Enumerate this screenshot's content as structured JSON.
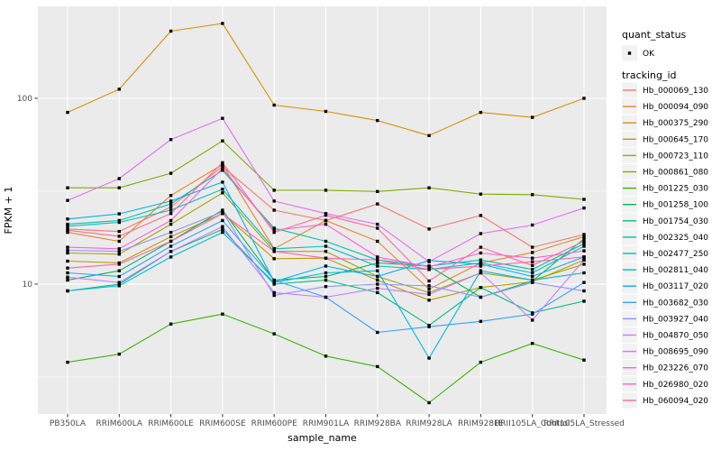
{
  "chart_data": {
    "type": "line",
    "title": "",
    "xlabel": "sample_name",
    "ylabel": "FPKM + 1",
    "y_scale": "log10",
    "y_ticks": [
      100,
      10
    ],
    "y_minor_ticks": [
      31.62,
      3.162
    ],
    "categories": [
      "PB350LA",
      "RRIM600LA",
      "RRIM600LE",
      "RRIM600SE",
      "RRIM600PE",
      "RRIM901LA",
      "RRIM928BA",
      "RRIM928LA",
      "RRIM928LE",
      "RRII105LA_Control",
      "RRII105LA_Stressed"
    ],
    "legend": {
      "quant_status_title": "quant_status",
      "quant_status_items": [
        {
          "label": "OK",
          "marker": "point",
          "color": "#000000"
        }
      ],
      "tracking_id_title": "tracking_id"
    },
    "colors": {
      "panel_bg": "#EBEBEB",
      "grid": "#FFFFFF",
      "tick_text": "#4D4D4D",
      "axis_text": "#000000",
      "point": "#000000",
      "legend_key_bg": "#F2F2F2"
    },
    "series": [
      {
        "name": "Hb_000069_130",
        "color": "#F8766D",
        "values": [
          19.8,
          19.2,
          26,
          43,
          25,
          22,
          27,
          19.8,
          23.4,
          15.8,
          18.5
        ]
      },
      {
        "name": "Hb_000094_090",
        "color": "#E88526",
        "values": [
          19.0,
          17.0,
          30,
          44,
          15.5,
          22,
          17,
          9.4,
          13.0,
          14.8,
          18.0
        ]
      },
      {
        "name": "Hb_000375_290",
        "color": "#D89000",
        "values": [
          84,
          112,
          230,
          253,
          92,
          85,
          76,
          63,
          84,
          79,
          100
        ]
      },
      {
        "name": "Hb_000645_170",
        "color": "#C09B00",
        "values": [
          13.3,
          13.0,
          18,
          24,
          13.7,
          13.8,
          10.5,
          8.2,
          9.6,
          10.3,
          13.5
        ]
      },
      {
        "name": "Hb_000723_110",
        "color": "#A3A500",
        "values": [
          14.7,
          14.5,
          21,
          31,
          15.0,
          15.0,
          11.0,
          9.0,
          11.5,
          10.5,
          12.8
        ]
      },
      {
        "name": "Hb_000861_080",
        "color": "#7CAE00",
        "values": [
          33,
          33,
          39.5,
          59,
          32,
          32,
          31.5,
          33,
          30.5,
          30.3,
          28.6
        ]
      },
      {
        "name": "Hb_001225_030",
        "color": "#39B600",
        "values": [
          3.8,
          4.2,
          6.1,
          6.9,
          5.4,
          4.1,
          3.6,
          2.3,
          3.8,
          4.8,
          3.9
        ]
      },
      {
        "name": "Hb_001258_100",
        "color": "#00BB4E",
        "values": [
          10.5,
          11.8,
          17,
          25,
          10.5,
          11.0,
          13.0,
          12.5,
          8.5,
          10.4,
          17.5
        ]
      },
      {
        "name": "Hb_001754_030",
        "color": "#00BF7D",
        "values": [
          9.2,
          10.0,
          15,
          19.7,
          10.0,
          10.5,
          9.0,
          6.0,
          9.6,
          7.0,
          8.1
        ]
      },
      {
        "name": "Hb_002325_040",
        "color": "#00C1A3",
        "values": [
          21,
          22,
          27,
          41,
          20,
          17,
          13.5,
          12.5,
          13.5,
          12.0,
          16.5
        ]
      },
      {
        "name": "Hb_002477_250",
        "color": "#00BFC4",
        "values": [
          20.5,
          21.5,
          25,
          32.4,
          15.5,
          16,
          12.5,
          12,
          13,
          11.5,
          16
        ]
      },
      {
        "name": "Hb_002811_040",
        "color": "#00BAE0",
        "values": [
          9.2,
          9.8,
          14,
          19,
          10.2,
          11.5,
          11.8,
          4.0,
          11.8,
          10.5,
          11.5
        ]
      },
      {
        "name": "Hb_003117_020",
        "color": "#00B0F6",
        "values": [
          22.4,
          23.9,
          28,
          35.4,
          10.3,
          12.5,
          11.0,
          13.4,
          12.8,
          11.0,
          14.0
        ]
      },
      {
        "name": "Hb_003682_030",
        "color": "#35A2FF",
        "values": [
          11.5,
          11.0,
          16,
          22,
          10.5,
          8.5,
          5.5,
          5.9,
          6.3,
          6.9,
          10.2
        ]
      },
      {
        "name": "Hb_003927_040",
        "color": "#9590FF",
        "values": [
          15.2,
          15.0,
          19,
          24.5,
          8.7,
          9.7,
          10.0,
          9.8,
          8.5,
          10.2,
          9.2
        ]
      },
      {
        "name": "Hb_004870_050",
        "color": "#C77CFF",
        "values": [
          10.9,
          10.2,
          15,
          20.4,
          9.0,
          8.5,
          9.5,
          8.8,
          11.5,
          6.4,
          13.5
        ]
      },
      {
        "name": "Hb_008695_090",
        "color": "#E76BF3",
        "values": [
          28.2,
          37,
          60,
          78,
          28,
          24,
          21,
          13.2,
          18.7,
          20.8,
          25.7
        ]
      },
      {
        "name": "Hb_023226_070",
        "color": "#FA62DB",
        "values": [
          15.8,
          15.5,
          22,
          42,
          19.5,
          21,
          14,
          12.4,
          14.7,
          13.8,
          15.1
        ]
      },
      {
        "name": "Hb_026980_020",
        "color": "#FF62BC",
        "values": [
          12.2,
          12.8,
          17,
          24,
          15.0,
          13.8,
          13.5,
          12.0,
          12.5,
          13.2,
          14.0
        ]
      },
      {
        "name": "Hb_060094_020",
        "color": "#FF6A98",
        "values": [
          19.5,
          18.1,
          24,
          45,
          19.0,
          23.5,
          20.0,
          10.4,
          15.8,
          12.6,
          17.0
        ]
      }
    ]
  }
}
